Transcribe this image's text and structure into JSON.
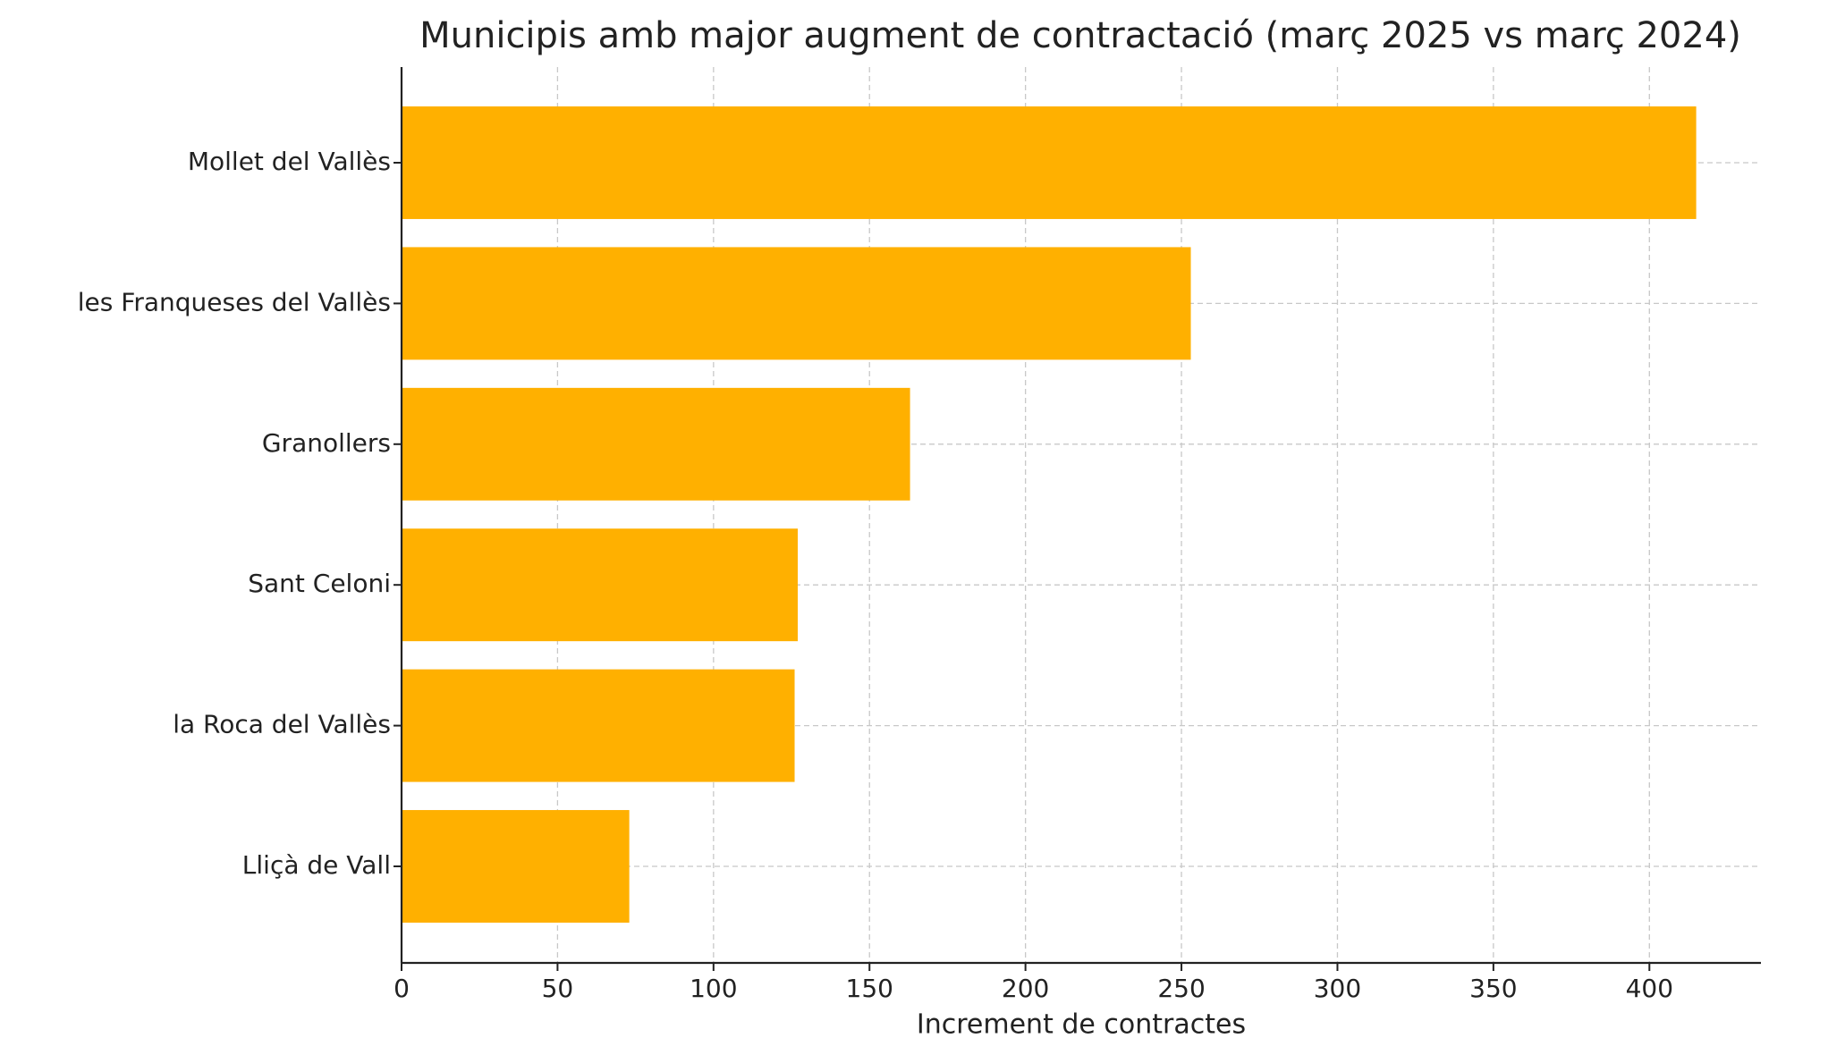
{
  "chart_data": {
    "type": "barh",
    "title": "Municipis amb major augment de contractació (març 2025 vs març 2024)",
    "x_label": "Increment de contractes",
    "categories": [
      "Mollet del Vallès",
      "les Franqueses del Vallès",
      "Granollers",
      "Sant Celoni",
      "la Roca del Vallès",
      "Lliçà de Vall"
    ],
    "values": [
      415,
      253,
      163,
      127,
      126,
      73
    ],
    "color": "#ffb000",
    "xlim": [
      0,
      435.75
    ],
    "xticks": [
      0,
      50,
      100,
      150,
      200,
      250,
      300,
      350,
      400
    ],
    "grid": true
  }
}
